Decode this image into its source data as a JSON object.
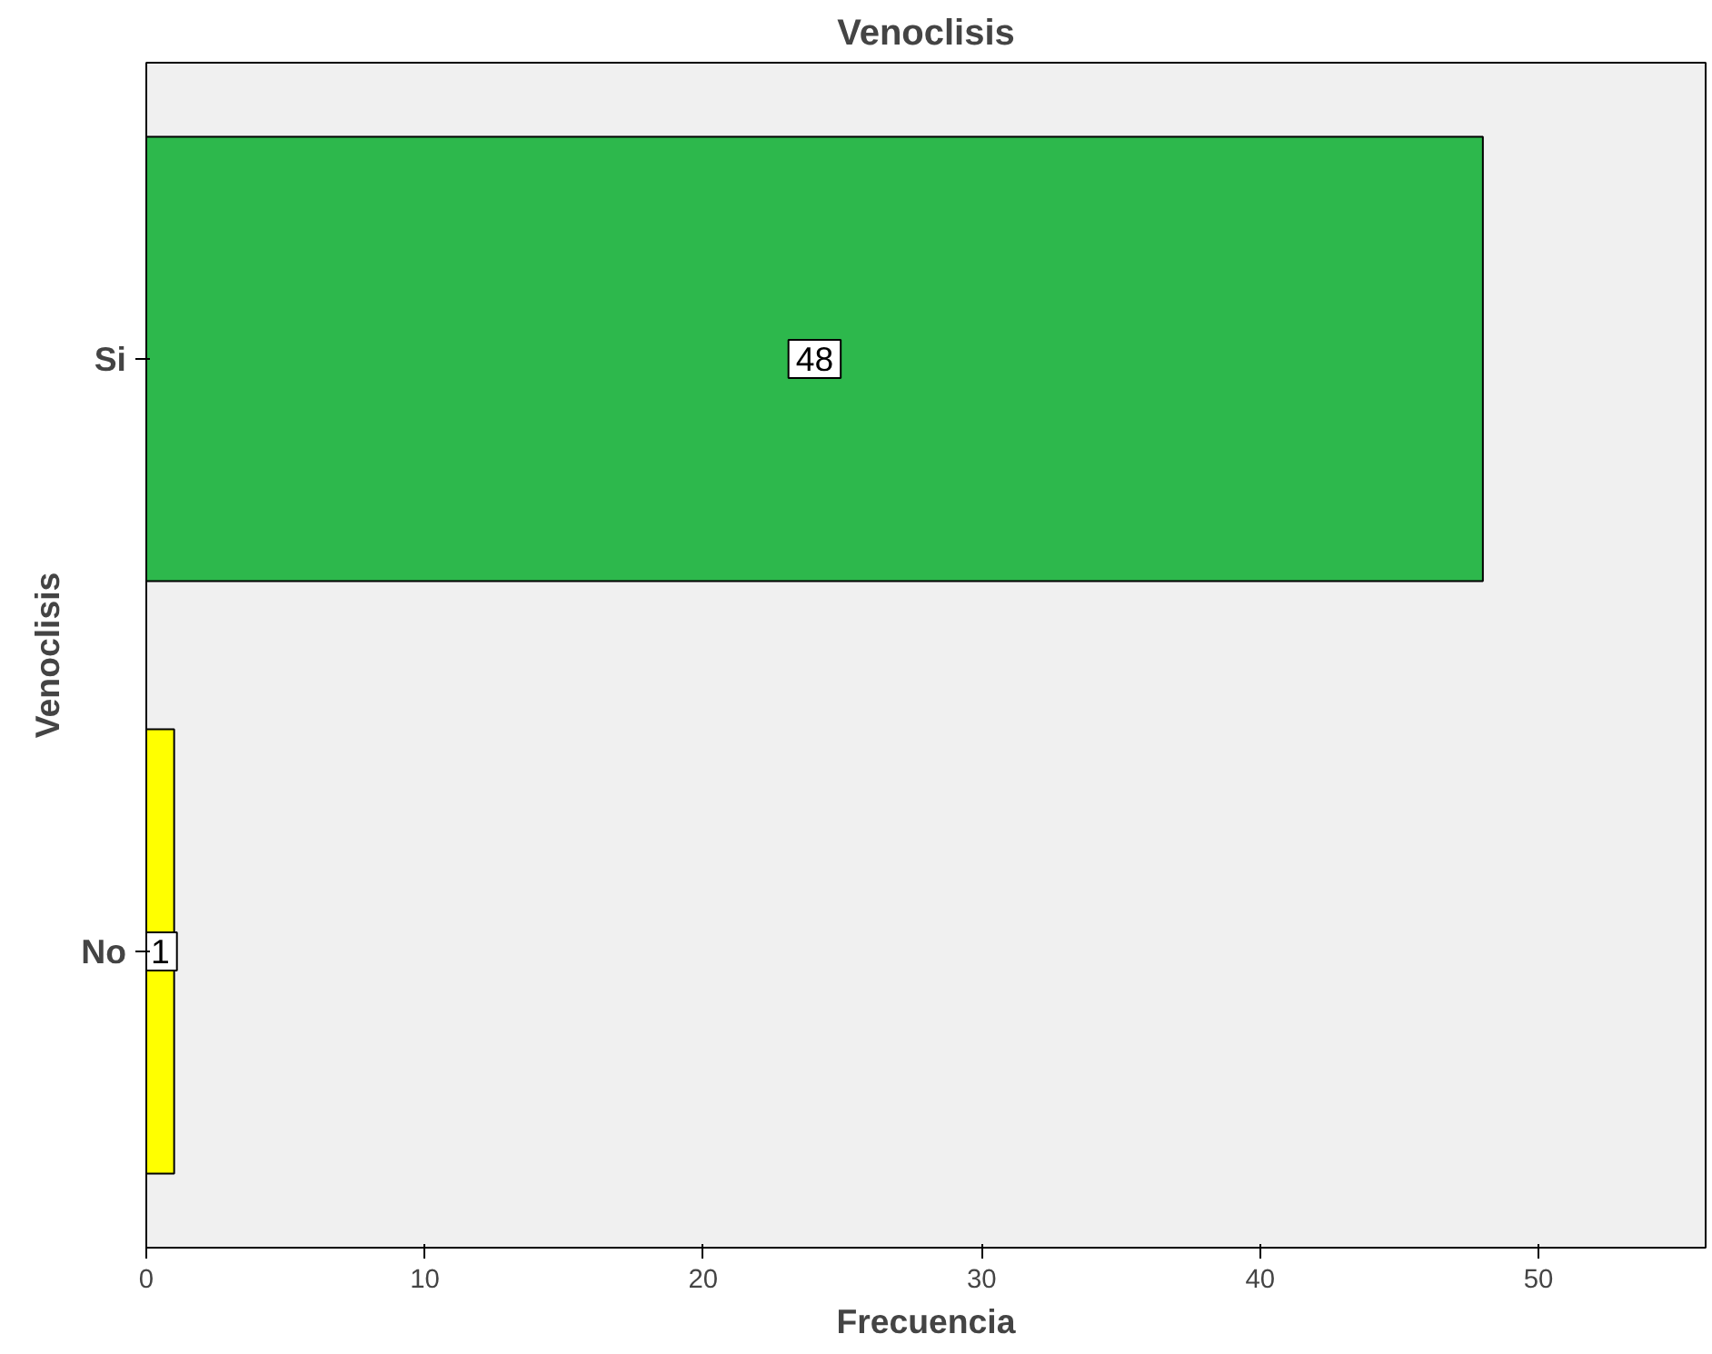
{
  "chart_data": {
    "type": "bar",
    "orientation": "horizontal",
    "title": "Venoclisis",
    "xlabel": "Frecuencia",
    "ylabel": "Venoclisis",
    "categories": [
      "Si",
      "No"
    ],
    "values": [
      48,
      1
    ],
    "colors": [
      "#2db84c",
      "#ffff00"
    ],
    "xlim": [
      0,
      56
    ],
    "xticks": [
      0,
      10,
      20,
      30,
      40,
      50
    ],
    "data_labels": true,
    "grid": false
  }
}
